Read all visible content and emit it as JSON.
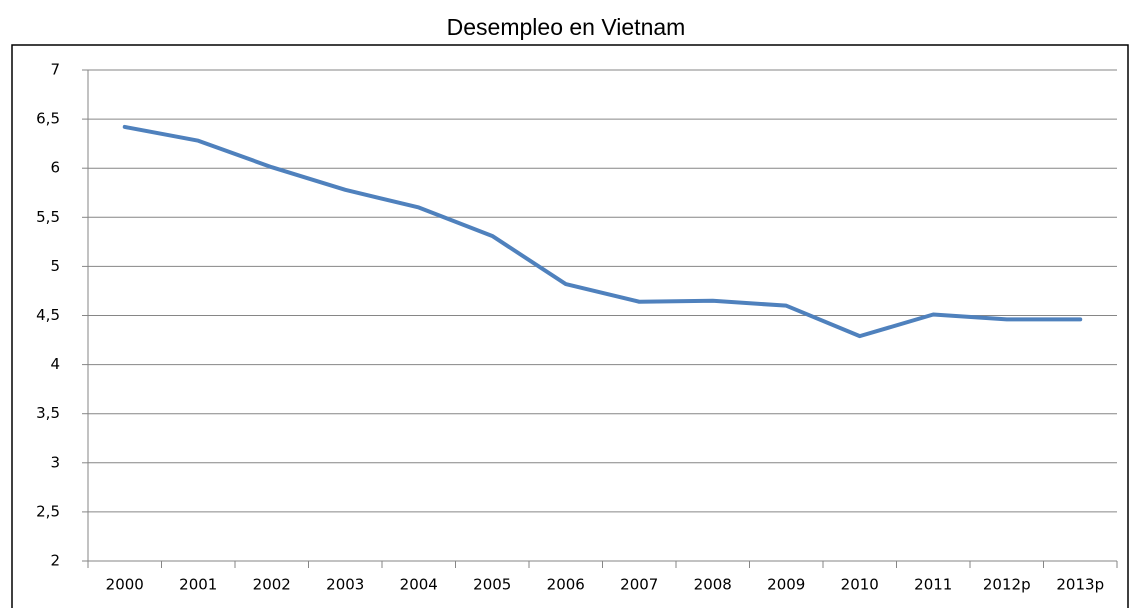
{
  "chart_data": {
    "type": "line",
    "title": "Desempleo en Vietnam",
    "categories": [
      "2000",
      "2001",
      "2002",
      "2003",
      "2004",
      "2005",
      "2006",
      "2007",
      "2008",
      "2009",
      "2010",
      "2011",
      "2012p",
      "2013p"
    ],
    "series": [
      {
        "name": "Desempleo",
        "color": "#4f81bd",
        "values": [
          6.42,
          6.28,
          6.01,
          5.78,
          5.6,
          5.31,
          4.82,
          4.64,
          4.65,
          4.6,
          4.29,
          4.51,
          4.46,
          4.46
        ]
      }
    ],
    "ylim": [
      2,
      7
    ],
    "yticks": [
      2,
      {
        "value": 2.5,
        "label": "2,5"
      },
      3,
      {
        "value": 3.5,
        "label": "3,5"
      },
      4,
      {
        "value": 4.5,
        "label": "4,5"
      },
      5,
      {
        "value": 5.5,
        "label": "5,5"
      },
      6,
      {
        "value": 6.5,
        "label": "6,5"
      },
      7
    ],
    "grid": true
  }
}
